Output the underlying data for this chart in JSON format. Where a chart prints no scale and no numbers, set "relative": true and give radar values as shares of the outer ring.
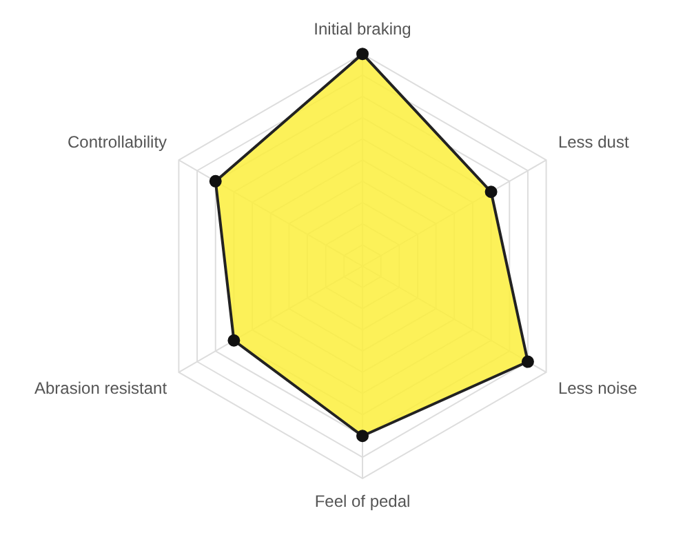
{
  "chart_data": {
    "type": "radar",
    "relative": true,
    "grid": true,
    "marker": "circle",
    "categories": [
      "Initial braking",
      "Less dust",
      "Less noise",
      "Feel of pedal",
      "Abrasion resistant",
      "Controllability"
    ],
    "series": [
      {
        "color": "#fcee3c",
        "values": [
          1.0,
          0.7,
          0.9,
          0.8,
          0.7,
          0.8
        ]
      }
    ]
  }
}
